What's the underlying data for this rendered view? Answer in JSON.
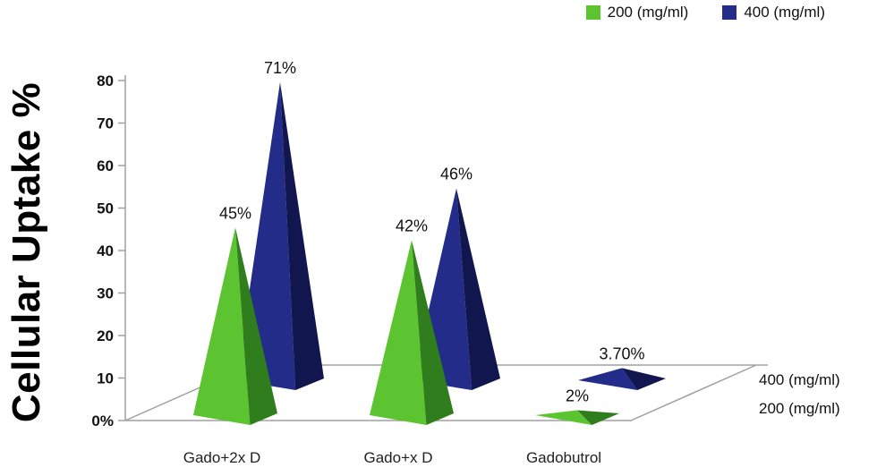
{
  "chart_data": {
    "type": "bar",
    "subtype": "3d-pyramid",
    "title": "",
    "ylabel": "Cellular Uptake %",
    "xlabel": "",
    "categories": [
      "Gado+2x D",
      "Gado+x D",
      "Gadobutrol"
    ],
    "series": [
      {
        "name": "200 (mg/ml)",
        "color": "#5cc431",
        "shade": "#2f7d1c",
        "values": [
          45,
          42,
          2
        ],
        "labels": [
          "45%",
          "42%",
          "2%"
        ]
      },
      {
        "name": "400 (mg/ml)",
        "color": "#232c88",
        "shade": "#11164e",
        "values": [
          71,
          46,
          3.7
        ],
        "labels": [
          "71%",
          "46%",
          "3.70%"
        ]
      }
    ],
    "y_ticks": [
      "0%",
      "10",
      "20",
      "30",
      "40",
      "50",
      "60",
      "70",
      "80"
    ],
    "ylim": [
      0,
      80
    ],
    "depth_axis_labels": [
      "400 (mg/ml)",
      "200 (mg/ml)"
    ],
    "legend_position": "top-right",
    "grid": false,
    "axis_color": "#a0a0a0",
    "text_color": "#111111",
    "background": "#ffffff"
  }
}
